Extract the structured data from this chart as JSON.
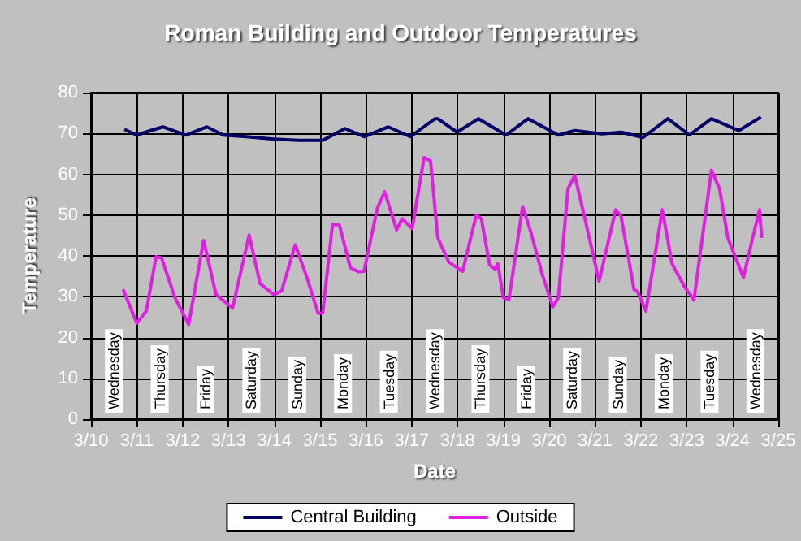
{
  "chart_data": {
    "type": "line",
    "title": "Roman Building and Outdoor Temperatures",
    "xlabel": "Date",
    "ylabel": "Temperature",
    "xlim": [
      "--03-10",
      "--03-25"
    ],
    "xticks": [
      {
        "value": "--03-10",
        "label": "3/10"
      },
      {
        "value": "--03-11",
        "label": "3/11"
      },
      {
        "value": "--03-12",
        "label": "3/12"
      },
      {
        "value": "--03-13",
        "label": "3/13"
      },
      {
        "value": "--03-14",
        "label": "3/14"
      },
      {
        "value": "--03-15",
        "label": "3/15"
      },
      {
        "value": "--03-16",
        "label": "3/16"
      },
      {
        "value": "--03-17",
        "label": "3/17"
      },
      {
        "value": "--03-18",
        "label": "3/18"
      },
      {
        "value": "--03-19",
        "label": "3/19"
      },
      {
        "value": "--03-20",
        "label": "3/20"
      },
      {
        "value": "--03-21",
        "label": "3/21"
      },
      {
        "value": "--03-22",
        "label": "3/22"
      },
      {
        "value": "--03-23",
        "label": "3/23"
      },
      {
        "value": "--03-24",
        "label": "3/24"
      },
      {
        "value": "--03-25",
        "label": "3/25"
      }
    ],
    "ylim": [
      0,
      80
    ],
    "yticks": [
      0,
      10,
      20,
      30,
      40,
      50,
      60,
      70,
      80
    ],
    "grid": true,
    "legend": "bottom",
    "marker": "none",
    "line_style": "solid",
    "series": [
      {
        "name": "Central Building",
        "color": "#000066",
        "x": [
          "--03-10T17:30",
          "--03-11T00:00",
          "--03-11T07:12",
          "--03-11T13:40",
          "--03-12T01:40",
          "--03-12T12:45",
          "--03-12T21:20",
          "--03-13T09:20",
          "--03-13T23:45",
          "--03-14T12:30",
          "--03-15T01:25",
          "--03-15T13:00",
          "--03-15T23:00",
          "--03-16T11:45",
          "--03-16T23:15",
          "--03-17T12:15",
          "--03-17T13:40",
          "--03-17T23:45",
          "--03-18T11:00",
          "--03-19T01:25",
          "--03-19T13:00",
          "--03-20T04:50",
          "--03-20T13:25",
          "--03-21T03:35",
          "--03-21T13:40",
          "--03-22T01:10",
          "--03-22T14:10",
          "--03-23T01:25",
          "--03-23T13:00",
          "--03-24T03:20",
          "--03-24T14:55"
        ],
        "values": [
          71,
          69.6,
          70.7,
          71.6,
          69.6,
          71.6,
          69.6,
          69.2,
          68.6,
          68.3,
          68.3,
          71.2,
          69.2,
          71.6,
          69.2,
          73.6,
          73.6,
          70.3,
          73.6,
          69.6,
          73.6,
          69.6,
          70.7,
          69.9,
          70.3,
          69,
          73.6,
          69.6,
          73.6,
          70.7,
          74
        ]
      },
      {
        "name": "Outside",
        "color": "#e020e0",
        "x": [
          "--03-10T16:50",
          "--03-11T00:00",
          "--03-11T05:00",
          "--03-11T10:05",
          "--03-11T13:00",
          "--03-11T19:55",
          "--03-12T03:10",
          "--03-12T11:00",
          "--03-12T17:30",
          "--03-13T02:10",
          "--03-13T10:50",
          "--03-13T16:35",
          "--03-13T23:45",
          "--03-14T03:50",
          "--03-14T11:00",
          "--03-14T16:50",
          "--03-14T23:00",
          "--03-15T01:25",
          "--03-15T06:30",
          "--03-15T10:05",
          "--03-15T15:50",
          "--03-15T20:10",
          "--03-15T23:00",
          "--03-16T06:00",
          "--03-16T09:50",
          "--03-16T16:05",
          "--03-16T19:00",
          "--03-17T00:15",
          "--03-17T06:30",
          "--03-17T09:50",
          "--03-17T13:40",
          "--03-17T19:25",
          "--03-18T02:40",
          "--03-18T09:50",
          "--03-18T12:30",
          "--03-18T16:50",
          "--03-18T19:40",
          "--03-18T21:05",
          "--03-19T00:00",
          "--03-19T02:55",
          "--03-19T10:05",
          "--03-19T14:25",
          "--03-19T20:10",
          "--03-20T01:55",
          "--03-20T04:50",
          "--03-20T09:50",
          "--03-20T13:25",
          "--03-20T17:45",
          "--03-21T02:10",
          "--03-21T10:50",
          "--03-21T13:40",
          "--03-21T20:25",
          "--03-21T22:20",
          "--03-22T02:40",
          "--03-22T11:15",
          "--03-22T16:20",
          "--03-22T22:50",
          "--03-23T03:50",
          "--03-23T13:00",
          "--03-23T17:15",
          "--03-23T21:35",
          "--03-24T05:45",
          "--03-24T10:35",
          "--03-24T14:10",
          "--03-24T15:20"
        ],
        "values": [
          31.8,
          23.5,
          26.5,
          39.8,
          39.5,
          29.8,
          23.2,
          43.8,
          30.5,
          27.2,
          45.1,
          33.2,
          30.5,
          31.4,
          42.7,
          35.1,
          25.9,
          26.1,
          47.7,
          47.6,
          37.1,
          36.1,
          36.2,
          51.7,
          55.7,
          46.4,
          49.1,
          46.7,
          64.1,
          63.3,
          44.4,
          38.5,
          36.2,
          50,
          49.1,
          37.8,
          36.7,
          38.1,
          29.8,
          29.2,
          52.1,
          45.8,
          35.8,
          27.5,
          29.8,
          56.4,
          59.7,
          51.1,
          33.8,
          51.3,
          49.7,
          31.8,
          31.2,
          26.5,
          51.3,
          38.1,
          32.5,
          29.2,
          61,
          56.4,
          44.4,
          34.7,
          44.4,
          51.3,
          44.4
        ]
      }
    ],
    "annotations": [
      "Wednesday",
      "Thursday",
      "Friday",
      "Saturday",
      "Sunday",
      "Monday",
      "Tuesday",
      "Wednesday",
      "Thursday",
      "Friday",
      "Saturday",
      "Sunday",
      "Monday",
      "Tuesday",
      "Wednesday"
    ]
  }
}
